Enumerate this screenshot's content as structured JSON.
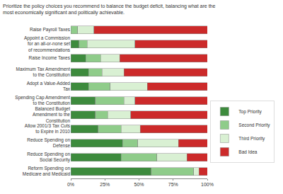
{
  "chart_data": {
    "type": "bar",
    "orientation": "horizontal",
    "stacked": true,
    "title": "Prioritize the policy choices you recommend to balance the budget deficit, balancing what are the most economically significant and politically achievable.",
    "categories": [
      "Raise Payroll Taxes",
      "Appoint a Commission for an all-or-none set of recommendations",
      "Raise Income Taxes",
      "Maximum Tax Amendment to the Constitution",
      "Adopt a Value-Added Tax",
      "Spending Cap Amendment to the Constitution",
      "Balanced Budget Amendment to the Constitution",
      "Allow 2001/3 Tax Cuts to Expire in 2010",
      "Reduce Spending on Defense",
      "Reduce Spending on Social Security",
      "Reform Spending on Medicare and Medicaid"
    ],
    "series": [
      {
        "name": "Top Priority",
        "color": "#3d8b3d",
        "values": [
          0,
          6,
          11,
          13,
          13,
          18,
          18,
          20,
          38,
          37,
          59
        ]
      },
      {
        "name": "Second Priority",
        "color": "#8fcc8a",
        "values": [
          5,
          6,
          11,
          10,
          16,
          21,
          9,
          17,
          11,
          26,
          31
        ]
      },
      {
        "name": "Third Priority",
        "color": "#d9f0d3",
        "values": [
          12,
          35,
          14,
          16,
          27,
          8,
          17,
          14,
          30,
          22,
          4
        ]
      },
      {
        "name": "Bad Idea",
        "color": "#cc2a2a",
        "values": [
          83,
          53,
          64,
          61,
          44,
          53,
          56,
          49,
          21,
          15,
          6
        ]
      }
    ],
    "xlim": [
      0,
      100
    ],
    "xticks": [
      {
        "value": 0,
        "label": "0%"
      },
      {
        "value": 25,
        "label": "25%"
      },
      {
        "value": 50,
        "label": "50%"
      },
      {
        "value": 75,
        "label": "75%"
      },
      {
        "value": 100,
        "label": "100%"
      }
    ],
    "grid": false,
    "legend": "right"
  }
}
